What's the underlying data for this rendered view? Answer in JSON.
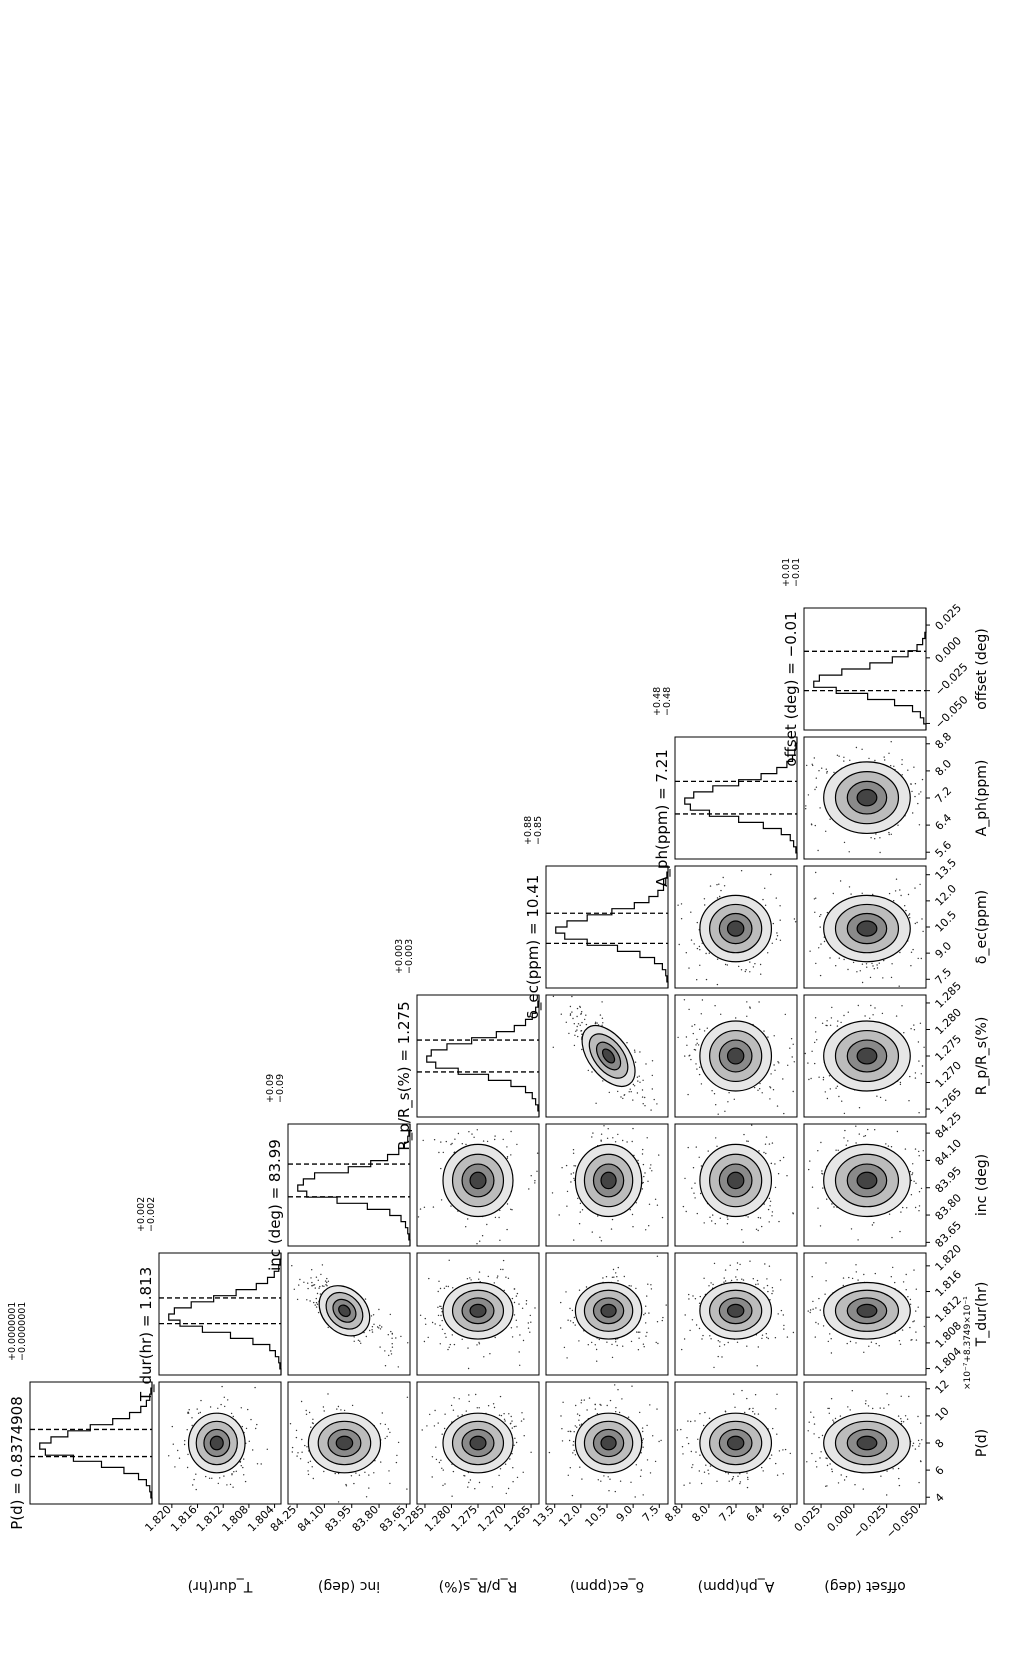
{
  "chart_data": {
    "type": "corner",
    "params": [
      {
        "key": "P",
        "label": "P(d)",
        "title": "P(d) = 0.8374908",
        "sup": "+0.0000001",
        "sub": "−0.0000001",
        "ticks": [
          "4",
          "6",
          "8",
          "10",
          "12"
        ],
        "range": [
          3.5,
          12.5
        ],
        "median": 8.0,
        "q_lo": 7.0,
        "q_hi": 9.0,
        "offset_note": "×10⁻⁷+8.3749×10⁻¹",
        "hist": [
          0.0,
          0.01,
          0.02,
          0.05,
          0.12,
          0.25,
          0.45,
          0.7,
          0.95,
          1.0,
          0.9,
          0.75,
          0.55,
          0.35,
          0.2,
          0.1,
          0.05,
          0.02,
          0.01,
          0.0
        ]
      },
      {
        "key": "Tdur",
        "label": "T_dur(hr)",
        "title": "T_dur(hr) = 1.813",
        "sup": "+0.002",
        "sub": "−0.002",
        "ticks": [
          "1.804",
          "1.808",
          "1.812",
          "1.816",
          "1.820"
        ],
        "range": [
          1.803,
          1.822
        ],
        "median": 1.813,
        "q_lo": 1.811,
        "q_hi": 1.815,
        "hist": [
          0.0,
          0.01,
          0.02,
          0.05,
          0.1,
          0.25,
          0.45,
          0.7,
          0.9,
          1.0,
          0.95,
          0.8,
          0.6,
          0.4,
          0.22,
          0.12,
          0.06,
          0.02,
          0.01,
          0.0
        ]
      },
      {
        "key": "inc",
        "label": "inc (deg)",
        "title": "inc (deg) = 83.99",
        "sup": "+0.09",
        "sub": "−0.09",
        "ticks": [
          "83.65",
          "83.80",
          "83.95",
          "84.10",
          "84.25"
        ],
        "range": [
          83.63,
          84.3
        ],
        "median": 83.99,
        "q_lo": 83.9,
        "q_hi": 84.08,
        "hist": [
          0.0,
          0.01,
          0.02,
          0.04,
          0.08,
          0.18,
          0.38,
          0.65,
          0.92,
          1.0,
          0.95,
          0.85,
          0.55,
          0.35,
          0.2,
          0.1,
          0.05,
          0.02,
          0.01,
          0.0
        ]
      },
      {
        "key": "Rp",
        "label": "R_p/R_s(%)",
        "title": "R_p/R_s(%) = 1.275",
        "sup": "+0.003",
        "sub": "−0.003",
        "ticks": [
          "1.265",
          "1.270",
          "1.275",
          "1.280",
          "1.285"
        ],
        "range": [
          1.2635,
          1.2865
        ],
        "median": 1.275,
        "q_lo": 1.272,
        "q_hi": 1.278,
        "hist": [
          0.0,
          0.01,
          0.03,
          0.06,
          0.12,
          0.25,
          0.45,
          0.72,
          0.92,
          1.0,
          0.96,
          0.82,
          0.6,
          0.38,
          0.22,
          0.12,
          0.06,
          0.03,
          0.01,
          0.0
        ]
      },
      {
        "key": "dec",
        "label": "δ_ec(ppm)",
        "title": "δ_ec(ppm) = 10.41",
        "sup": "+0.88",
        "sub": "−0.85",
        "ticks": [
          "7.5",
          "9.0",
          "10.5",
          "12.0",
          "13.5"
        ],
        "range": [
          7.0,
          14.0
        ],
        "median": 10.41,
        "q_lo": 9.56,
        "q_hi": 11.29,
        "hist": [
          0.0,
          0.01,
          0.02,
          0.05,
          0.12,
          0.25,
          0.45,
          0.72,
          0.92,
          1.0,
          0.9,
          0.72,
          0.5,
          0.3,
          0.17,
          0.09,
          0.04,
          0.02,
          0.01,
          0.0
        ]
      },
      {
        "key": "Aph",
        "label": "A_ph(ppm)",
        "title": "A_ph(ppm) = 7.21",
        "sup": "+0.48",
        "sub": "−0.48",
        "ticks": [
          "5.6",
          "6.4",
          "7.2",
          "8.0",
          "8.8"
        ],
        "range": [
          5.4,
          9.0
        ],
        "median": 7.21,
        "q_lo": 6.73,
        "q_hi": 7.69,
        "hist": [
          0.0,
          0.01,
          0.03,
          0.06,
          0.14,
          0.3,
          0.52,
          0.78,
          0.95,
          1.0,
          0.92,
          0.75,
          0.52,
          0.32,
          0.18,
          0.09,
          0.04,
          0.02,
          0.01,
          0.0
        ]
      },
      {
        "key": "off",
        "label": "offset (deg)",
        "title": "offset (deg) = −0.01",
        "sup": "+0.01",
        "sub": "−0.01",
        "ticks": [
          "−0.050",
          "−0.025",
          "0.000",
          "0.025"
        ],
        "tick_vals": [
          -0.05,
          -0.025,
          0.0,
          0.025
        ],
        "range": [
          -0.055,
          0.038
        ],
        "median": -0.01,
        "q_lo": -0.025,
        "q_hi": 0.005,
        "hist": [
          0.0,
          0.02,
          0.05,
          0.12,
          0.28,
          0.52,
          0.8,
          1.0,
          0.95,
          0.75,
          0.5,
          0.3,
          0.16,
          0.08,
          0.03,
          0.01,
          0.0,
          0.0,
          0.0,
          0.0
        ]
      }
    ],
    "correlations": {
      "0-1": 0.0,
      "0-2": 0.0,
      "1-2": 0.8,
      "3-4": 0.8
    },
    "quantile_line_style": "dashed",
    "orientation": "rotated 90° counter-clockwise"
  }
}
